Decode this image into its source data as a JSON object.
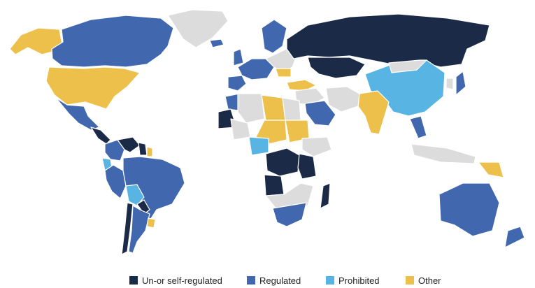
{
  "colors": {
    "unregulated": "#1b2b47",
    "regulated": "#4168ae",
    "prohibited": "#58b4e3",
    "other": "#ecc04a",
    "no_data": "#dcdcdc"
  },
  "legend": [
    {
      "key": "unregulated",
      "label": "Un-or self-regulated"
    },
    {
      "key": "regulated",
      "label": "Regulated"
    },
    {
      "key": "prohibited",
      "label": "Prohibited"
    },
    {
      "key": "other",
      "label": "Other"
    }
  ],
  "regions": [
    {
      "name": "alaska",
      "cat": "other"
    },
    {
      "name": "canada",
      "cat": "regulated"
    },
    {
      "name": "greenland",
      "cat": "no_data"
    },
    {
      "name": "usa",
      "cat": "other"
    },
    {
      "name": "mexico",
      "cat": "regulated"
    },
    {
      "name": "central-america",
      "cat": "unregulated"
    },
    {
      "name": "colombia",
      "cat": "regulated"
    },
    {
      "name": "venezuela",
      "cat": "unregulated"
    },
    {
      "name": "guyana",
      "cat": "unregulated"
    },
    {
      "name": "suriname",
      "cat": "other"
    },
    {
      "name": "ecuador",
      "cat": "prohibited"
    },
    {
      "name": "peru",
      "cat": "regulated"
    },
    {
      "name": "brazil",
      "cat": "regulated"
    },
    {
      "name": "bolivia",
      "cat": "prohibited"
    },
    {
      "name": "paraguay",
      "cat": "unregulated"
    },
    {
      "name": "chile",
      "cat": "unregulated"
    },
    {
      "name": "argentina",
      "cat": "regulated"
    },
    {
      "name": "uruguay",
      "cat": "other"
    },
    {
      "name": "iceland",
      "cat": "regulated"
    },
    {
      "name": "scandinavia",
      "cat": "regulated"
    },
    {
      "name": "uk",
      "cat": "regulated"
    },
    {
      "name": "west-europe",
      "cat": "regulated"
    },
    {
      "name": "iberia",
      "cat": "regulated"
    },
    {
      "name": "east-europe",
      "cat": "no_data"
    },
    {
      "name": "romania",
      "cat": "other"
    },
    {
      "name": "turkey",
      "cat": "other"
    },
    {
      "name": "russia",
      "cat": "unregulated"
    },
    {
      "name": "kazakhstan",
      "cat": "unregulated"
    },
    {
      "name": "china",
      "cat": "prohibited"
    },
    {
      "name": "mongolia",
      "cat": "no_data"
    },
    {
      "name": "india",
      "cat": "other"
    },
    {
      "name": "middle-east",
      "cat": "no_data"
    },
    {
      "name": "saudi-arabia",
      "cat": "regulated"
    },
    {
      "name": "iran",
      "cat": "no_data"
    },
    {
      "name": "southeast-asia",
      "cat": "regulated"
    },
    {
      "name": "indonesia",
      "cat": "no_data"
    },
    {
      "name": "japan",
      "cat": "regulated"
    },
    {
      "name": "korea",
      "cat": "no_data"
    },
    {
      "name": "morocco",
      "cat": "regulated"
    },
    {
      "name": "algeria",
      "cat": "no_data"
    },
    {
      "name": "libya",
      "cat": "other"
    },
    {
      "name": "egypt",
      "cat": "no_data"
    },
    {
      "name": "mauritania",
      "cat": "unregulated"
    },
    {
      "name": "mali",
      "cat": "no_data"
    },
    {
      "name": "niger-chad",
      "cat": "other"
    },
    {
      "name": "sudan",
      "cat": "other"
    },
    {
      "name": "nigeria",
      "cat": "prohibited"
    },
    {
      "name": "ethiopia",
      "cat": "no_data"
    },
    {
      "name": "central-africa",
      "cat": "unregulated"
    },
    {
      "name": "east-africa",
      "cat": "unregulated"
    },
    {
      "name": "angola",
      "cat": "unregulated"
    },
    {
      "name": "southern-africa",
      "cat": "no_data"
    },
    {
      "name": "south-africa",
      "cat": "regulated"
    },
    {
      "name": "madagascar",
      "cat": "unregulated"
    },
    {
      "name": "australia",
      "cat": "regulated"
    },
    {
      "name": "papua-new-guinea",
      "cat": "other"
    },
    {
      "name": "new-zealand",
      "cat": "regulated"
    }
  ]
}
